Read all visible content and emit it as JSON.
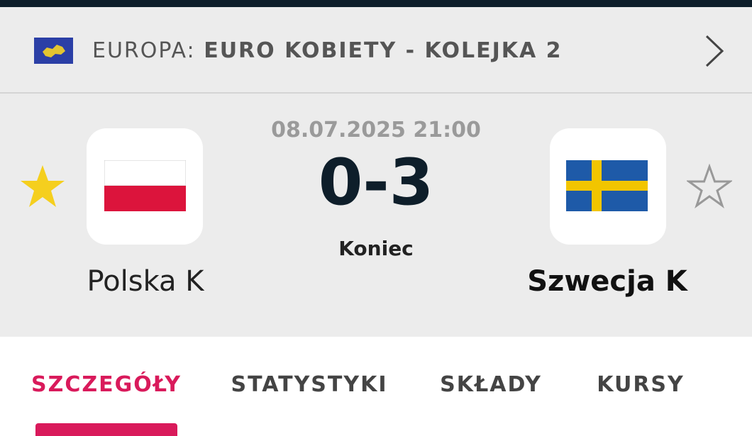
{
  "header": {
    "region": "EUROPA:",
    "competition": "EURO KOBIETY - KOLEJKA 2"
  },
  "match": {
    "datetime": "08.07.2025 21:00",
    "score": "0-3",
    "status": "Koniec",
    "home": "Polska K",
    "away": "Szwecja K"
  },
  "tabs": [
    "SZCZEGÓŁY",
    "STATYSTYKI",
    "SKŁADY",
    "KURSY"
  ]
}
